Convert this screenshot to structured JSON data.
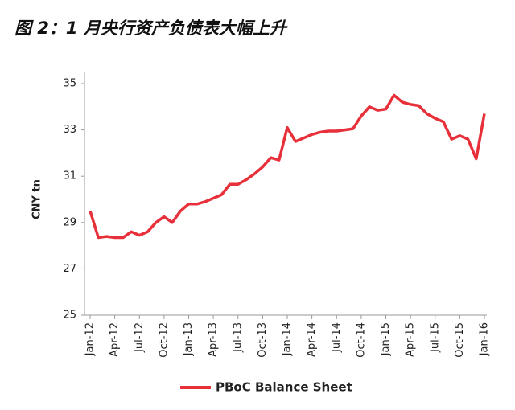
{
  "chart_data": {
    "type": "line",
    "title": "图 2：1 月央行资产负债表大幅上升",
    "y_label": "CNY tn",
    "categories": [
      "Jan-12",
      null,
      null,
      "Apr-12",
      null,
      null,
      "Jul-12",
      null,
      null,
      "Oct-12",
      null,
      null,
      "Jan-13",
      null,
      null,
      "Apr-13",
      null,
      null,
      "Jul-13",
      null,
      null,
      "Oct-13",
      null,
      null,
      "Jan-14",
      null,
      null,
      "Apr-14",
      null,
      null,
      "Jul-14",
      null,
      null,
      "Oct-14",
      null,
      null,
      "Jan-15",
      null,
      null,
      "Apr-15",
      null,
      null,
      "Jul-15",
      null,
      null,
      "Oct-15",
      null,
      null,
      "Jan-16"
    ],
    "series": [
      {
        "name": "PBoC Balance Sheet",
        "color": "#e8303a",
        "values": [
          29.5,
          28.35,
          28.4,
          28.35,
          28.35,
          28.6,
          28.45,
          28.6,
          29.0,
          29.25,
          29.0,
          29.5,
          29.8,
          29.8,
          29.9,
          30.05,
          30.2,
          30.65,
          30.65,
          30.85,
          31.1,
          31.4,
          31.8,
          31.7,
          33.1,
          32.5,
          32.65,
          32.8,
          32.9,
          32.95,
          32.95,
          33.0,
          33.05,
          33.6,
          34.0,
          33.85,
          33.9,
          34.5,
          34.2,
          34.1,
          34.05,
          33.7,
          33.5,
          33.35,
          32.6,
          32.75,
          32.6,
          31.75,
          33.7
        ]
      }
    ],
    "ylim": [
      25,
      35
    ],
    "yticks": [
      25,
      27,
      29,
      31,
      33,
      35
    ],
    "grid": false,
    "legend": "bottom"
  }
}
